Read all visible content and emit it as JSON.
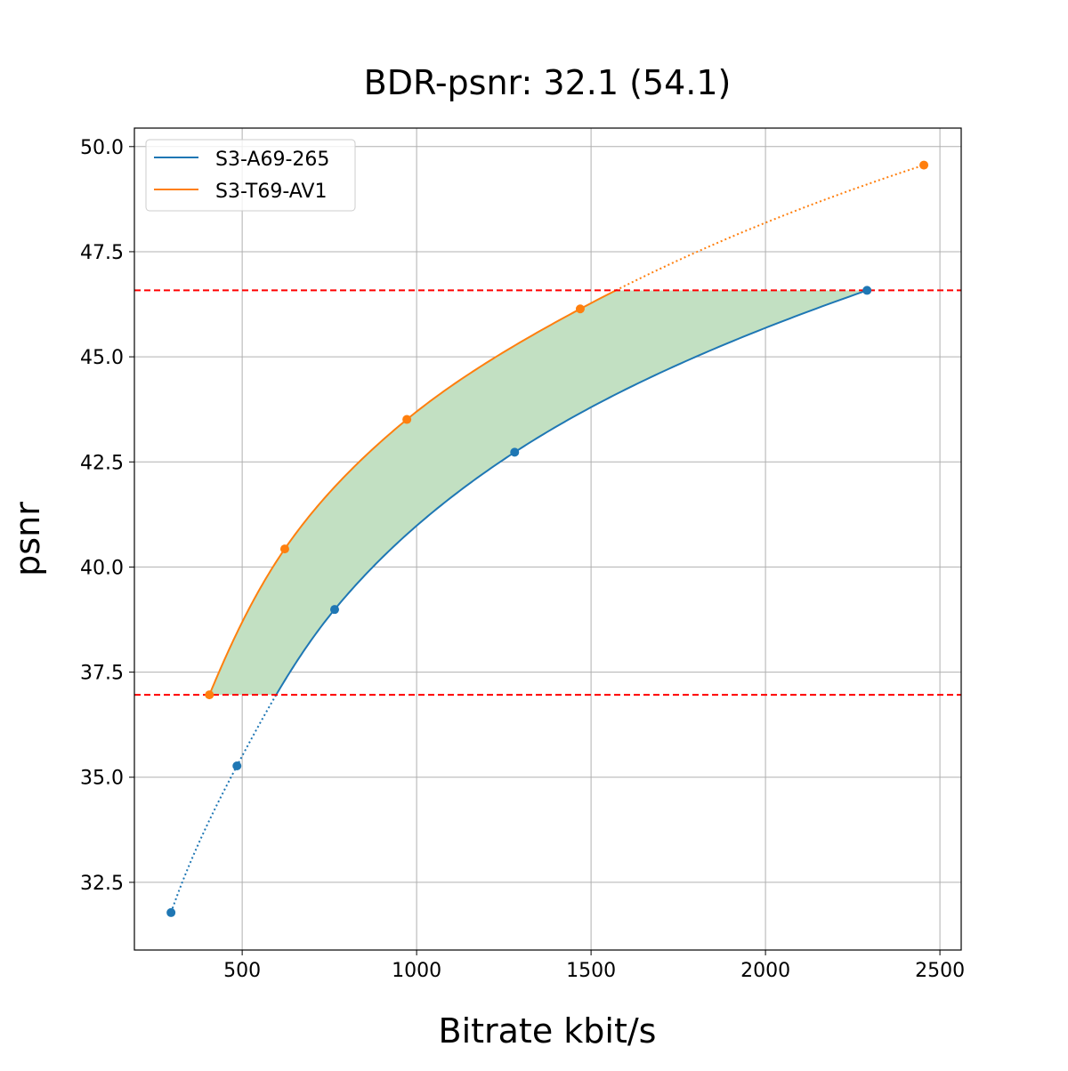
{
  "chart_data": {
    "type": "line",
    "title": "BDR-psnr: 32.1 (54.1)",
    "xlabel": "Bitrate kbit/s",
    "ylabel": "psnr",
    "xlim": [
      191,
      2561
    ],
    "ylim": [
      30.89,
      50.44
    ],
    "xticks": [
      500,
      1000,
      1500,
      2000,
      2500
    ],
    "xtick_labels": [
      "500",
      "1000",
      "1500",
      "2000",
      "2500"
    ],
    "yticks": [
      32.5,
      35.0,
      37.5,
      40.0,
      42.5,
      45.0,
      47.5,
      50.0
    ],
    "ytick_labels": [
      "32.5",
      "35.0",
      "37.5",
      "40.0",
      "42.5",
      "45.0",
      "47.5",
      "50.0"
    ],
    "grid": true,
    "legend_position": "top-left",
    "series": [
      {
        "name": "S3-A69-265",
        "color": "#1f77b4",
        "x": [
          296,
          485,
          765,
          1281,
          2291
        ],
        "y": [
          31.78,
          35.27,
          38.99,
          42.73,
          46.58
        ]
      },
      {
        "name": "S3-T69-AV1",
        "color": "#ff7f0e",
        "x": [
          406,
          622,
          972,
          1469,
          2454
        ],
        "y": [
          36.96,
          40.43,
          43.51,
          46.14,
          49.56
        ]
      }
    ],
    "hlines": [
      {
        "y": 46.58,
        "color": "#ff0000",
        "style": "dashed"
      },
      {
        "y": 36.96,
        "color": "#ff0000",
        "style": "dashed"
      }
    ],
    "fill_between": {
      "color": "#c2e0c2",
      "y_range": [
        36.96,
        46.58
      ]
    }
  }
}
